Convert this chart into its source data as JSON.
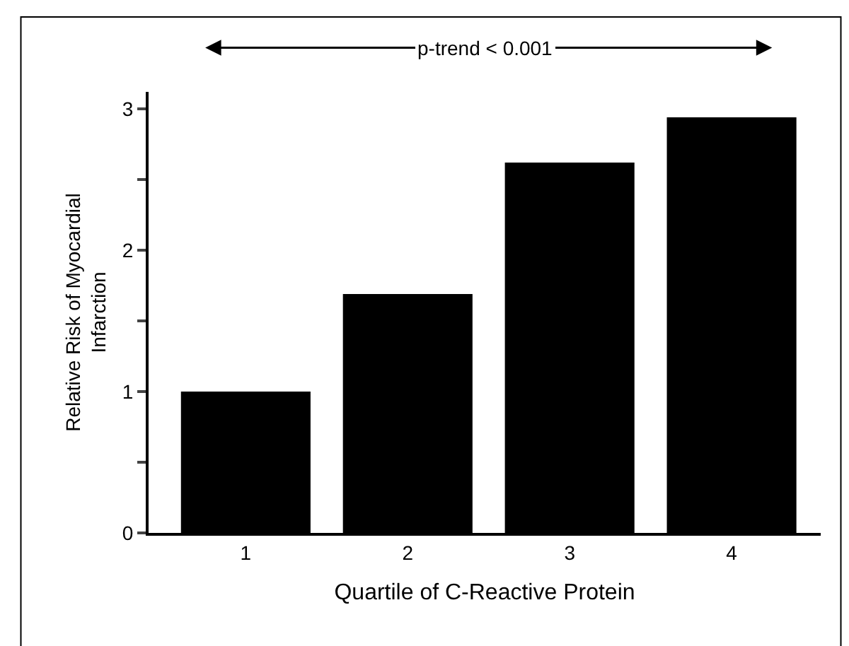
{
  "chart_data": {
    "type": "bar",
    "xlabel": "Quartile of C-Reactive Protein",
    "ylabel": "Relative Risk of Myocardial\nInfarction",
    "categories": [
      "1",
      "2",
      "3",
      "4"
    ],
    "values": [
      1.0,
      1.69,
      2.62,
      2.94
    ],
    "color": "#000000",
    "ylim": [
      0,
      3.12
    ],
    "yticks": [
      0,
      {
        "value": 0.5,
        "label": null
      },
      1,
      {
        "value": 1.5,
        "label": null
      },
      2,
      {
        "value": 2.5,
        "label": null
      },
      3
    ],
    "legend": false,
    "annotations": [
      "p-trend < 0.001"
    ]
  }
}
